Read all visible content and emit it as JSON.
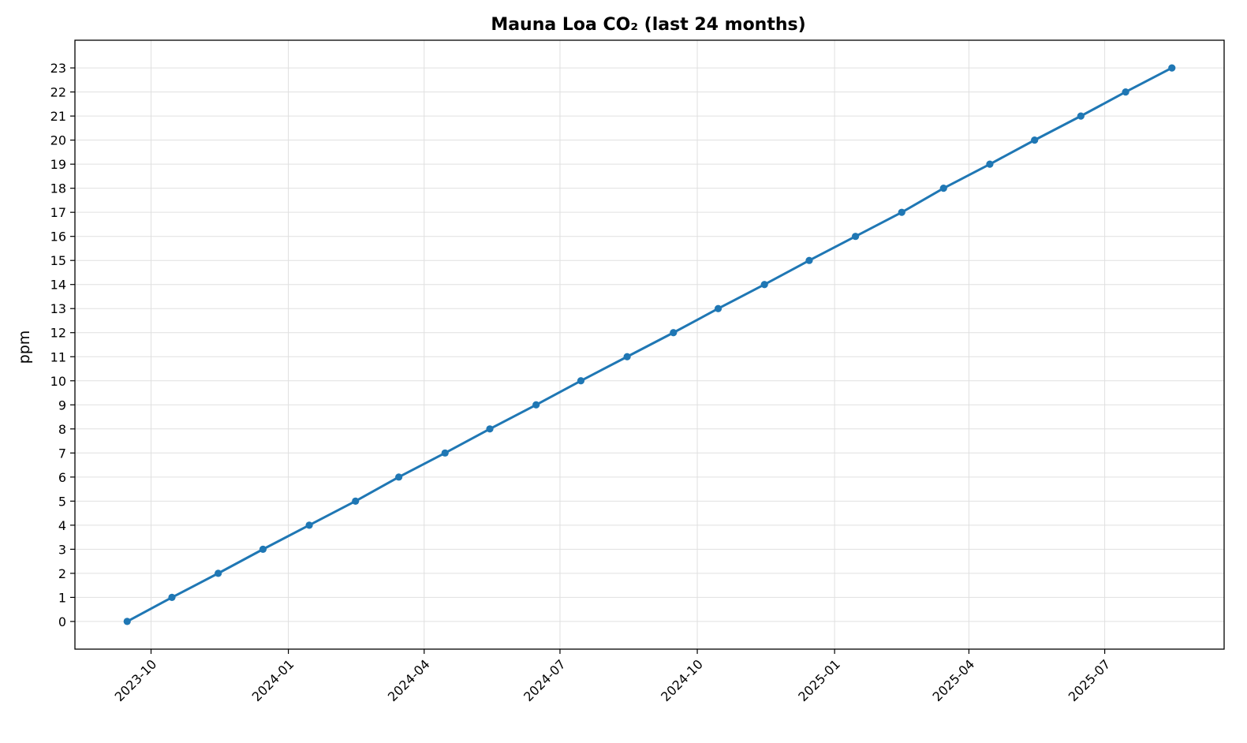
{
  "chart_data": {
    "type": "line",
    "title": "Mauna Loa CO₂ (last 24 months)",
    "xlabel": "",
    "ylabel": "ppm",
    "x_type": "date",
    "x": [
      "2023-09-15",
      "2023-10-15",
      "2023-11-15",
      "2023-12-15",
      "2024-01-15",
      "2024-02-15",
      "2024-03-15",
      "2024-04-15",
      "2024-05-15",
      "2024-06-15",
      "2024-07-15",
      "2024-08-15",
      "2024-09-15",
      "2024-10-15",
      "2024-11-15",
      "2024-12-15",
      "2025-01-15",
      "2025-02-15",
      "2025-03-15",
      "2025-04-15",
      "2025-05-15",
      "2025-06-15",
      "2025-07-15",
      "2025-08-15"
    ],
    "series": [
      {
        "values": [
          0,
          1,
          2,
          3,
          4,
          5,
          6,
          7,
          8,
          9,
          10,
          11,
          12,
          13,
          14,
          15,
          16,
          17,
          18,
          19,
          20,
          21,
          22,
          23
        ],
        "color": "#1f77b4"
      }
    ],
    "x_ticks": [
      "2023-10",
      "2024-01",
      "2024-04",
      "2024-07",
      "2024-10",
      "2025-01",
      "2025-04",
      "2025-07"
    ],
    "y_ticks": [
      0,
      1,
      2,
      3,
      4,
      5,
      6,
      7,
      8,
      9,
      10,
      11,
      12,
      13,
      14,
      15,
      16,
      17,
      18,
      19,
      20,
      21,
      22,
      23
    ],
    "xlim": [
      "2023-08-11",
      "2025-09-19"
    ],
    "ylim": [
      -1.15,
      24.15
    ],
    "grid": true,
    "legend": "none",
    "marker": "circle"
  }
}
